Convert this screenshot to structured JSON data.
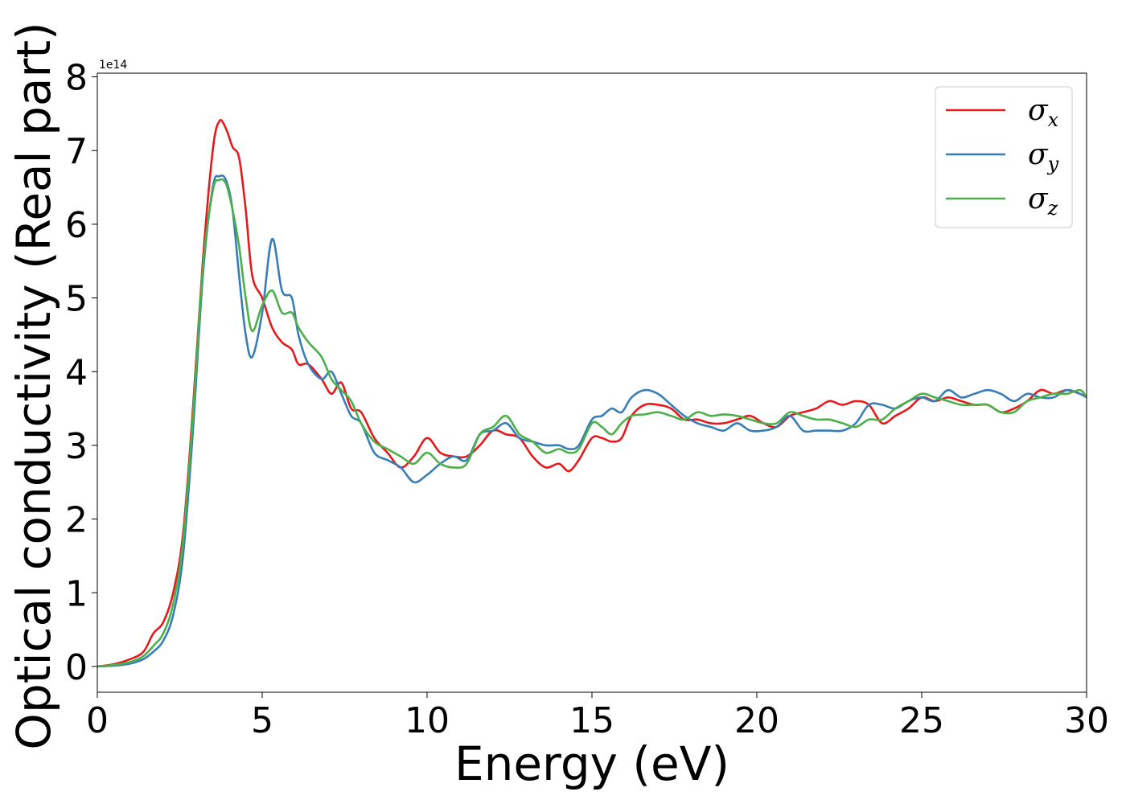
{
  "chart_data": {
    "type": "line",
    "title": "",
    "xlabel": "Energy (eV)",
    "ylabel": "Optical conductivity (Real part)",
    "y_offset_label": "1e14",
    "xlim": [
      0,
      30
    ],
    "ylim": [
      -0.35,
      8.05
    ],
    "x_ticks": [
      0,
      5,
      10,
      15,
      20,
      25,
      30
    ],
    "y_ticks": [
      0,
      1,
      2,
      3,
      4,
      5,
      6,
      7,
      8
    ],
    "grid": false,
    "legend_position": "top-right",
    "series": [
      {
        "name": "σx",
        "symbol": "σ",
        "subscript": "x",
        "color": "#e41a1c",
        "x": [
          0,
          0.5,
          1,
          1.4,
          1.7,
          2,
          2.3,
          2.6,
          2.9,
          3.2,
          3.5,
          3.7,
          3.9,
          4.1,
          4.3,
          4.5,
          4.7,
          5,
          5.3,
          5.6,
          5.9,
          6.1,
          6.4,
          6.8,
          7.1,
          7.4,
          7.7,
          8,
          8.4,
          8.8,
          9.2,
          9.6,
          10,
          10.4,
          10.8,
          11.2,
          11.6,
          12,
          12.4,
          12.8,
          13.2,
          13.6,
          14,
          14.3,
          14.6,
          15,
          15.3,
          15.6,
          15.9,
          16.2,
          16.6,
          17,
          17.4,
          17.8,
          18.2,
          18.6,
          19,
          19.4,
          19.8,
          20.2,
          20.6,
          21,
          21.4,
          21.8,
          22.2,
          22.6,
          23,
          23.4,
          23.8,
          24.2,
          24.6,
          25,
          25.4,
          25.8,
          26.2,
          26.6,
          27,
          27.4,
          27.8,
          28.2,
          28.6,
          29,
          29.4,
          29.8,
          30
        ],
        "y": [
          0,
          0.03,
          0.1,
          0.2,
          0.45,
          0.6,
          1.0,
          1.8,
          3.5,
          5.5,
          7.0,
          7.4,
          7.3,
          7.05,
          6.9,
          6.2,
          5.3,
          5.0,
          4.6,
          4.4,
          4.3,
          4.1,
          4.1,
          3.9,
          3.7,
          3.85,
          3.5,
          3.45,
          3.1,
          2.9,
          2.7,
          2.85,
          3.1,
          2.9,
          2.85,
          2.85,
          3.0,
          3.2,
          3.15,
          3.1,
          2.85,
          2.7,
          2.75,
          2.65,
          2.8,
          3.1,
          3.1,
          3.05,
          3.1,
          3.4,
          3.55,
          3.55,
          3.5,
          3.35,
          3.35,
          3.3,
          3.3,
          3.35,
          3.4,
          3.3,
          3.25,
          3.4,
          3.45,
          3.5,
          3.6,
          3.55,
          3.6,
          3.55,
          3.3,
          3.4,
          3.5,
          3.65,
          3.6,
          3.65,
          3.6,
          3.55,
          3.55,
          3.45,
          3.5,
          3.6,
          3.75,
          3.7,
          3.75,
          3.7,
          3.65
        ]
      },
      {
        "name": "σy",
        "symbol": "σ",
        "subscript": "y",
        "color": "#377eb8",
        "x": [
          0,
          0.5,
          1,
          1.4,
          1.7,
          2,
          2.3,
          2.6,
          2.9,
          3.2,
          3.5,
          3.7,
          3.9,
          4.1,
          4.3,
          4.5,
          4.7,
          5,
          5.3,
          5.6,
          5.9,
          6.1,
          6.4,
          6.8,
          7.1,
          7.4,
          7.7,
          8,
          8.4,
          8.8,
          9.2,
          9.6,
          10,
          10.4,
          10.8,
          11.2,
          11.6,
          12,
          12.4,
          12.8,
          13.2,
          13.6,
          14,
          14.3,
          14.6,
          15,
          15.3,
          15.6,
          15.9,
          16.2,
          16.6,
          17,
          17.4,
          17.8,
          18.2,
          18.6,
          19,
          19.4,
          19.8,
          20.2,
          20.6,
          21,
          21.4,
          21.8,
          22.2,
          22.6,
          23,
          23.4,
          23.8,
          24.2,
          24.6,
          25,
          25.4,
          25.8,
          26.2,
          26.6,
          27,
          27.4,
          27.8,
          28.2,
          28.6,
          29,
          29.4,
          29.8,
          30
        ],
        "y": [
          0,
          0.01,
          0.04,
          0.1,
          0.2,
          0.35,
          0.7,
          1.5,
          3.2,
          5.3,
          6.5,
          6.65,
          6.6,
          6.2,
          5.3,
          4.5,
          4.2,
          4.8,
          5.8,
          5.1,
          5.0,
          4.5,
          4.1,
          3.9,
          4.0,
          3.7,
          3.4,
          3.3,
          2.9,
          2.8,
          2.7,
          2.5,
          2.6,
          2.75,
          2.85,
          2.8,
          3.15,
          3.2,
          3.3,
          3.1,
          3.05,
          3.0,
          3.0,
          2.95,
          3.0,
          3.35,
          3.4,
          3.5,
          3.45,
          3.65,
          3.75,
          3.7,
          3.55,
          3.4,
          3.3,
          3.25,
          3.2,
          3.3,
          3.2,
          3.2,
          3.25,
          3.4,
          3.2,
          3.2,
          3.2,
          3.2,
          3.3,
          3.55,
          3.55,
          3.5,
          3.6,
          3.65,
          3.6,
          3.75,
          3.65,
          3.7,
          3.75,
          3.7,
          3.6,
          3.7,
          3.65,
          3.65,
          3.75,
          3.7,
          3.65
        ]
      },
      {
        "name": "σz",
        "symbol": "σ",
        "subscript": "z",
        "color": "#4daf4a",
        "x": [
          0,
          0.5,
          1,
          1.4,
          1.7,
          2,
          2.3,
          2.6,
          2.9,
          3.2,
          3.5,
          3.7,
          3.9,
          4.1,
          4.3,
          4.5,
          4.7,
          5,
          5.3,
          5.6,
          5.9,
          6.1,
          6.4,
          6.8,
          7.1,
          7.4,
          7.7,
          8,
          8.4,
          8.8,
          9.2,
          9.6,
          10,
          10.4,
          10.8,
          11.2,
          11.6,
          12,
          12.4,
          12.8,
          13.2,
          13.6,
          14,
          14.3,
          14.6,
          15,
          15.3,
          15.6,
          15.9,
          16.2,
          16.6,
          17,
          17.4,
          17.8,
          18.2,
          18.6,
          19,
          19.4,
          19.8,
          20.2,
          20.6,
          21,
          21.4,
          21.8,
          22.2,
          22.6,
          23,
          23.4,
          23.8,
          24.2,
          24.6,
          25,
          25.4,
          25.8,
          26.2,
          26.6,
          27,
          27.4,
          27.8,
          28.2,
          28.6,
          29,
          29.4,
          29.8,
          30
        ],
        "y": [
          0,
          0.02,
          0.06,
          0.14,
          0.28,
          0.45,
          0.85,
          1.7,
          3.4,
          5.4,
          6.45,
          6.6,
          6.55,
          6.2,
          5.7,
          5.0,
          4.55,
          4.9,
          5.1,
          4.8,
          4.8,
          4.6,
          4.4,
          4.2,
          3.9,
          3.75,
          3.6,
          3.3,
          3.05,
          2.95,
          2.85,
          2.75,
          2.9,
          2.75,
          2.7,
          2.75,
          3.15,
          3.25,
          3.4,
          3.15,
          3.05,
          2.9,
          2.95,
          2.9,
          2.95,
          3.3,
          3.25,
          3.15,
          3.3,
          3.4,
          3.42,
          3.45,
          3.4,
          3.35,
          3.45,
          3.4,
          3.42,
          3.4,
          3.35,
          3.3,
          3.3,
          3.45,
          3.4,
          3.35,
          3.35,
          3.3,
          3.25,
          3.35,
          3.35,
          3.5,
          3.6,
          3.7,
          3.65,
          3.6,
          3.55,
          3.55,
          3.55,
          3.45,
          3.45,
          3.6,
          3.65,
          3.7,
          3.7,
          3.75,
          3.65
        ]
      }
    ]
  }
}
